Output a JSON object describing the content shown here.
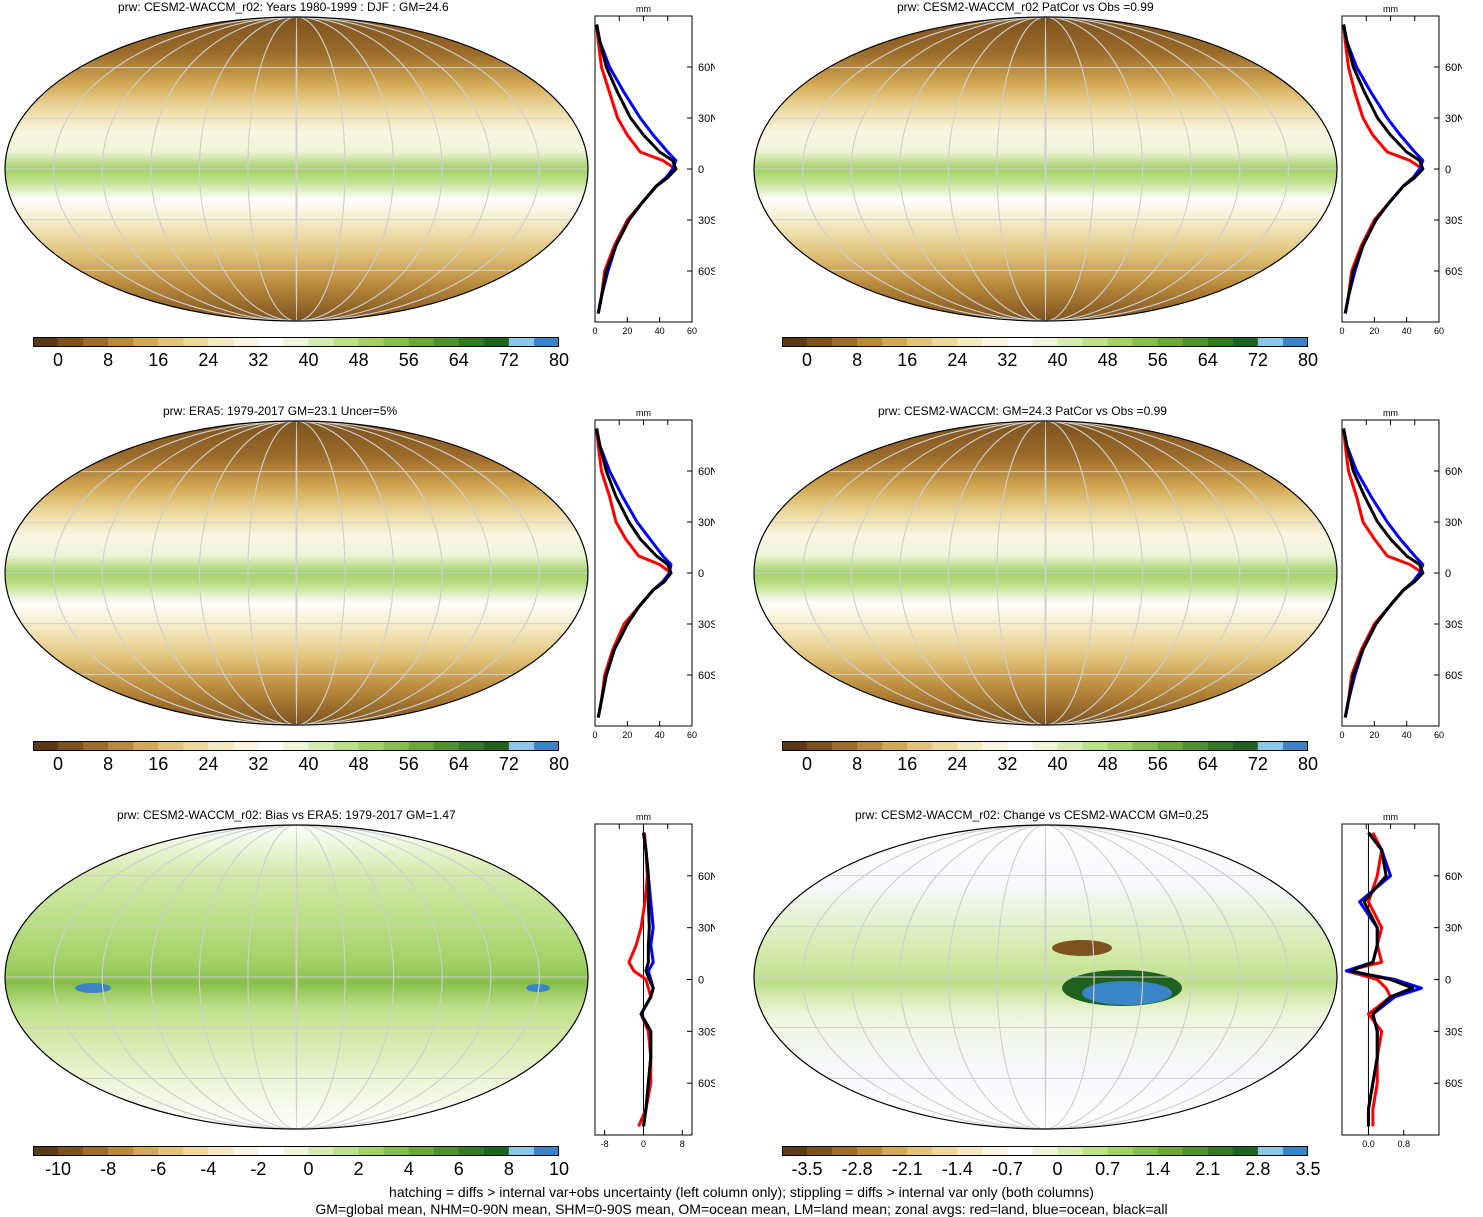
{
  "panels": [
    {
      "title": "prw: CESM2-WACCM_r02: Years 1980-1999 : DJF : GM=24.6"
    },
    {
      "title": "prw: CESM2-WACCM_r02 PatCor vs Obs =0.99"
    },
    {
      "title": "prw: ERA5: 1979-2017 GM=23.1 Uncer=5%"
    },
    {
      "title": "prw: CESM2-WACCM: GM=24.3 PatCor vs Obs =0.99"
    },
    {
      "title": "prw: CESM2-WACCM_r02: Bias vs ERA5: 1979-2017 GM=1.47"
    },
    {
      "title": "prw: CESM2-WACCM_r02: Change vs CESM2-WACCM GM=0.25"
    }
  ],
  "profile_unit": "mm",
  "lat_ticks": [
    "60N",
    "30N",
    "0",
    "30S",
    "60S"
  ],
  "colorbars": {
    "absolute": {
      "labels": [
        "0",
        "8",
        "16",
        "24",
        "32",
        "40",
        "48",
        "56",
        "64",
        "72",
        "80"
      ],
      "colors": [
        "#5b3a18",
        "#7d521f",
        "#9c6c2b",
        "#b98a3c",
        "#d2a954",
        "#e1c37a",
        "#ecd89d",
        "#f5e9c1",
        "#fbf5e3",
        "#ffffff",
        "#eef5d9",
        "#d6ebb0",
        "#bde08a",
        "#a3d166",
        "#87bf4a",
        "#6aa83a",
        "#4e912e",
        "#347925",
        "#1f6220",
        "#8ec6ea",
        "#3a85c8"
      ]
    },
    "bias": {
      "labels": [
        "-10",
        "-8",
        "-6",
        "-4",
        "-2",
        "0",
        "2",
        "4",
        "6",
        "8",
        "10"
      ],
      "colors": [
        "#5b3a18",
        "#7d521f",
        "#9c6c2b",
        "#b98a3c",
        "#d2a954",
        "#e1c37a",
        "#ecd89d",
        "#f5e9c1",
        "#fbf5e3",
        "#ffffff",
        "#eef5d9",
        "#d6ebb0",
        "#bde08a",
        "#a3d166",
        "#87bf4a",
        "#6aa83a",
        "#4e912e",
        "#347925",
        "#1f6220",
        "#8ec6ea",
        "#3a85c8"
      ]
    },
    "change": {
      "labels": [
        "-3.5",
        "-2.8",
        "-2.1",
        "-1.4",
        "-0.7",
        "0",
        "0.7",
        "1.4",
        "2.1",
        "2.8",
        "3.5"
      ],
      "colors": [
        "#5b3a18",
        "#7d521f",
        "#9c6c2b",
        "#b98a3c",
        "#d2a954",
        "#e1c37a",
        "#ecd89d",
        "#f5e9c1",
        "#fbf5e3",
        "#ffffff",
        "#eef5d9",
        "#d6ebb0",
        "#bde08a",
        "#a3d166",
        "#87bf4a",
        "#6aa83a",
        "#4e912e",
        "#347925",
        "#1f6220",
        "#8ec6ea",
        "#3a85c8"
      ]
    }
  },
  "series_colors": {
    "land": "#ff0000",
    "ocean": "#0000ff",
    "all": "#000000"
  },
  "footer": {
    "line1": "hatching = diffs > internal var+obs uncertainty (left column only); stippling = diffs > internal var only (both columns)",
    "line2": "GM=global mean, NHM=0-90N mean, SHM=0-90S mean, OM=ocean mean, LM=land mean; zonal avgs: red=land, blue=ocean, black=all"
  },
  "chart_data": [
    {
      "type": "line",
      "panel": "prw: CESM2-WACCM_r02: Years 1980-1999 : DJF : GM=24.6",
      "x_ticks": [
        "0",
        "20",
        "40",
        "60"
      ],
      "xlim": [
        0,
        60
      ],
      "lat": [
        85,
        75,
        60,
        45,
        30,
        20,
        10,
        5,
        0,
        -5,
        -10,
        -20,
        -30,
        -45,
        -60,
        -75,
        -85
      ],
      "series": [
        {
          "name": "land",
          "values": [
            1,
            2,
            4,
            9,
            14,
            20,
            28,
            42,
            50,
            45,
            38,
            29,
            20,
            12,
            6,
            4,
            2
          ]
        },
        {
          "name": "ocean",
          "values": [
            1,
            3,
            9,
            18,
            28,
            36,
            45,
            50,
            48,
            44,
            38,
            29,
            21,
            13,
            8,
            4,
            2
          ]
        },
        {
          "name": "all",
          "values": [
            1,
            3,
            7,
            14,
            22,
            30,
            40,
            48,
            50,
            45,
            38,
            29,
            21,
            13,
            7,
            4,
            2
          ]
        }
      ]
    },
    {
      "type": "line",
      "panel": "prw: CESM2-WACCM_r02 PatCor vs Obs =0.99",
      "x_ticks": [
        "0",
        "20",
        "40",
        "60"
      ],
      "xlim": [
        0,
        60
      ],
      "lat": [
        85,
        75,
        60,
        45,
        30,
        20,
        10,
        5,
        0,
        -5,
        -10,
        -20,
        -30,
        -45,
        -60,
        -75,
        -85
      ],
      "series": [
        {
          "name": "land",
          "values": [
            1,
            2,
            4,
            8,
            13,
            19,
            28,
            42,
            50,
            45,
            38,
            29,
            20,
            12,
            6,
            4,
            2
          ]
        },
        {
          "name": "ocean",
          "values": [
            1,
            3,
            9,
            18,
            28,
            36,
            45,
            50,
            48,
            44,
            38,
            29,
            21,
            13,
            8,
            4,
            2
          ]
        },
        {
          "name": "all",
          "values": [
            1,
            3,
            7,
            14,
            22,
            30,
            40,
            48,
            50,
            45,
            38,
            29,
            21,
            13,
            7,
            4,
            2
          ]
        }
      ]
    },
    {
      "type": "line",
      "panel": "prw: ERA5: 1979-2017 GM=23.1 Uncer=5%",
      "x_ticks": [
        "0",
        "20",
        "40",
        "60"
      ],
      "xlim": [
        0,
        60
      ],
      "lat": [
        85,
        75,
        60,
        45,
        30,
        20,
        10,
        5,
        0,
        -5,
        -10,
        -20,
        -30,
        -45,
        -60,
        -75,
        -85
      ],
      "series": [
        {
          "name": "land",
          "values": [
            1,
            2,
            4,
            9,
            13,
            19,
            27,
            40,
            47,
            43,
            36,
            27,
            18,
            11,
            6,
            4,
            2
          ]
        },
        {
          "name": "ocean",
          "values": [
            1,
            3,
            9,
            17,
            26,
            34,
            42,
            47,
            46,
            42,
            36,
            27,
            20,
            12,
            7,
            4,
            2
          ]
        },
        {
          "name": "all",
          "values": [
            1,
            3,
            7,
            13,
            21,
            28,
            38,
            45,
            47,
            43,
            36,
            27,
            20,
            12,
            7,
            4,
            2
          ]
        }
      ]
    },
    {
      "type": "line",
      "panel": "prw: CESM2-WACCM: GM=24.3 PatCor vs Obs =0.99",
      "x_ticks": [
        "0",
        "20",
        "40",
        "60"
      ],
      "xlim": [
        0,
        60
      ],
      "lat": [
        85,
        75,
        60,
        45,
        30,
        20,
        10,
        5,
        0,
        -5,
        -10,
        -20,
        -30,
        -45,
        -60,
        -75,
        -85
      ],
      "series": [
        {
          "name": "land",
          "values": [
            1,
            2,
            4,
            9,
            13,
            20,
            28,
            42,
            50,
            45,
            38,
            29,
            20,
            12,
            6,
            4,
            2
          ]
        },
        {
          "name": "ocean",
          "values": [
            1,
            3,
            9,
            18,
            28,
            36,
            45,
            50,
            48,
            44,
            38,
            29,
            21,
            13,
            8,
            4,
            2
          ]
        },
        {
          "name": "all",
          "values": [
            1,
            3,
            7,
            14,
            22,
            30,
            40,
            48,
            50,
            45,
            38,
            29,
            21,
            13,
            7,
            4,
            2
          ]
        }
      ]
    },
    {
      "type": "line",
      "panel": "prw: CESM2-WACCM_r02: Bias vs ERA5: 1979-2017 GM=1.47",
      "x_ticks": [
        "-8",
        "0",
        "8"
      ],
      "xlim": [
        -10,
        10
      ],
      "lat": [
        85,
        75,
        60,
        45,
        30,
        20,
        10,
        5,
        0,
        -5,
        -10,
        -20,
        -30,
        -45,
        -60,
        -75,
        -85
      ],
      "series": [
        {
          "name": "land",
          "values": [
            0.2,
            0.5,
            0.8,
            0.3,
            -0.5,
            -1.5,
            -3,
            -2,
            0.5,
            1,
            1.5,
            -0.5,
            1,
            1.5,
            1.5,
            0.5,
            -1
          ]
        },
        {
          "name": "ocean",
          "values": [
            0,
            0.5,
            1,
            1.5,
            2,
            1.5,
            2,
            1,
            1.5,
            2,
            1.5,
            -0.5,
            1.5,
            1.5,
            1,
            0.5,
            0
          ]
        },
        {
          "name": "all",
          "values": [
            0,
            0.5,
            1,
            1,
            1.2,
            1,
            1,
            0.5,
            1.2,
            2,
            1.5,
            -0.5,
            1.5,
            1.5,
            1,
            0.5,
            0
          ]
        }
      ]
    },
    {
      "type": "line",
      "panel": "prw: CESM2-WACCM_r02: Change vs CESM2-WACCM GM=0.25",
      "x_ticks": [
        "0.0",
        "0.8"
      ],
      "xlim": [
        -0.6,
        1.6
      ],
      "lat": [
        85,
        75,
        60,
        45,
        30,
        20,
        10,
        5,
        0,
        -5,
        -10,
        -20,
        -30,
        -45,
        -60,
        -75,
        -85
      ],
      "series": [
        {
          "name": "land",
          "values": [
            0.1,
            0.3,
            0.2,
            0,
            0.3,
            0.2,
            0.3,
            -0.5,
            0.2,
            0.4,
            0.5,
            0,
            0.3,
            0.2,
            0.2,
            0.1,
            0.1
          ]
        },
        {
          "name": "ocean",
          "values": [
            0,
            0.3,
            0.5,
            -0.2,
            0.2,
            0.2,
            0.1,
            -0.5,
            0.6,
            1.2,
            0.6,
            0.1,
            0.2,
            0.2,
            0.1,
            0,
            0
          ]
        },
        {
          "name": "all",
          "values": [
            0,
            0.3,
            0.4,
            -0.1,
            0.2,
            0.2,
            0.1,
            -0.4,
            0.5,
            1,
            0.5,
            0.1,
            0.2,
            0.2,
            0.1,
            0,
            0
          ]
        }
      ]
    }
  ]
}
